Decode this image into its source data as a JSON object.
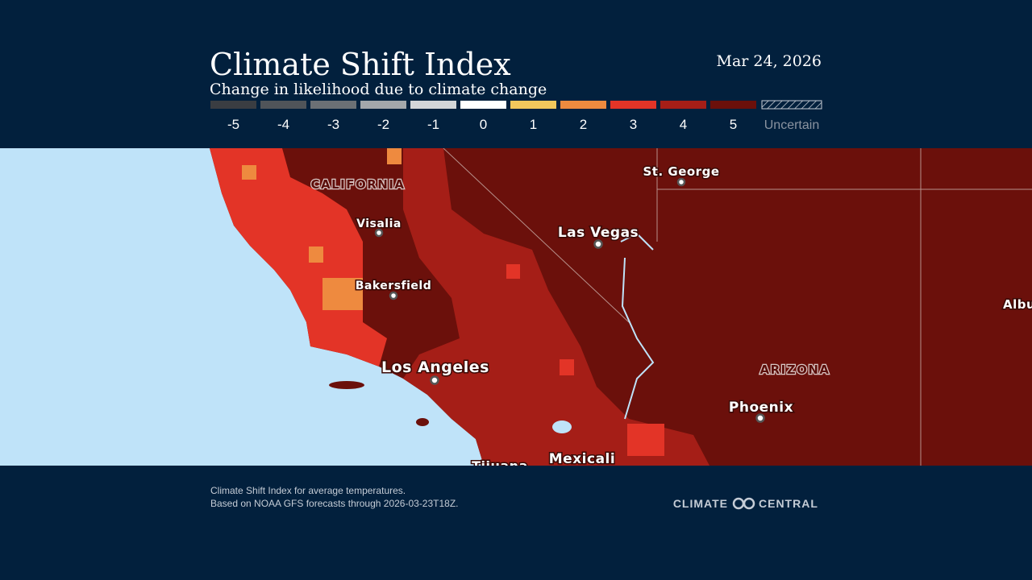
{
  "header": {
    "title": "Climate Shift Index",
    "subtitle": "Change in likelihood due to climate change",
    "date": "Mar 24, 2026"
  },
  "legend": {
    "items": [
      {
        "label": "-5",
        "color": "#3a3d42"
      },
      {
        "label": "-4",
        "color": "#505459"
      },
      {
        "label": "-3",
        "color": "#6c7075"
      },
      {
        "label": "-2",
        "color": "#a4a7ab"
      },
      {
        "label": "-1",
        "color": "#d3d5d8"
      },
      {
        "label": "0",
        "color": "#ffffff"
      },
      {
        "label": "1",
        "color": "#f2c75c"
      },
      {
        "label": "2",
        "color": "#ee8a3f"
      },
      {
        "label": "3",
        "color": "#e33427"
      },
      {
        "label": "4",
        "color": "#a51e17"
      },
      {
        "label": "5",
        "color": "#6b100b"
      }
    ],
    "uncertain_label": "Uncertain"
  },
  "map_labels": {
    "california": "CALIFORNIA",
    "visalia": "Visalia",
    "bakersfield": "Bakersfield",
    "los_angeles": "Los Angeles",
    "las_vegas": "Las Vegas",
    "st_george": "St. George",
    "arizona": "ARIZONA",
    "phoenix": "Phoenix",
    "tijuana": "Tijuana",
    "mexicali": "Mexicali",
    "albu": "Albu"
  },
  "footer": {
    "line1": "Climate Shift Index for average temperatures.",
    "line2": "Based on NOAA GFS forecasts through 2026-03-23T18Z.",
    "brand_left": "CLIMATE",
    "brand_right": "CENTRAL"
  }
}
